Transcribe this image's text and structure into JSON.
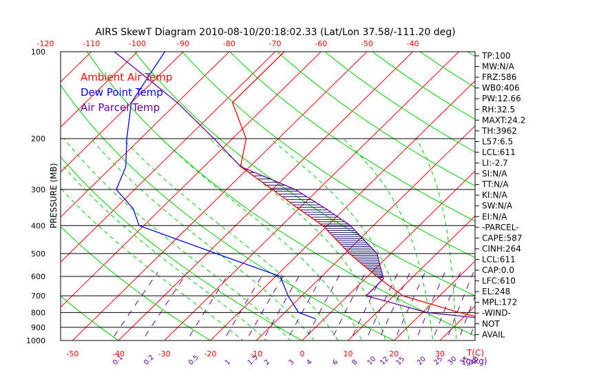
{
  "title": "AIRS SkewT Diagram 2010-08-10/20:18:02.33 (Lat/Lon 37.58/-111.20 deg)",
  "ylabel": "PRESSURE (MB)",
  "xunit_label": "T(C)",
  "mixing_unit_label": "(g/kg)",
  "legend": [
    {
      "label": "Ambient Air Temp",
      "color": "#ff0000"
    },
    {
      "label": "Dew Point Temp",
      "color": "#0000ff"
    },
    {
      "label": "Air Parcel Temp",
      "color": "#660099"
    }
  ],
  "colors": {
    "temp": "#ff0000",
    "dew": "#0000ff",
    "parcel": "#660099",
    "isotherm": "#ff0000",
    "dry_adiabat": "#00cc00",
    "moist_adiabat": "#00cc00",
    "mixing_ratio": "#660099",
    "hatch": "#000066",
    "axis_text": "#ff0000",
    "mixing_text": "#660099"
  },
  "stats": [
    "TP:100",
    "MW:N/A",
    "FRZ:586",
    "WB0:406",
    "PW:12.66",
    "RH:32.5",
    "MAXT:24.2",
    "TH:3962",
    "L57:6.5",
    "LCL:611",
    "LI:-2.7",
    "SI:N/A",
    "TT:N/A",
    "KI:N/A",
    "SW:N/A",
    "EI:N/A",
    "-PARCEL-",
    "CAPE:587",
    "CINH:264",
    "LCL:611",
    "CAP:0.0",
    "LFC:610",
    "EL:248",
    "MPL:172",
    "-WIND-",
    "NOT",
    "AVAIL"
  ],
  "chart_data": {
    "type": "line",
    "title": "AIRS SkewT Diagram 2010-08-10/20:18:02.33 (Lat/Lon 37.58/-111.20 deg)",
    "ylabel": "PRESSURE (MB)",
    "xlabel": "T(C)",
    "y_scale": "log",
    "ylim": [
      1000,
      100
    ],
    "pressure_ticks": [
      100,
      200,
      300,
      400,
      500,
      600,
      700,
      800,
      900,
      1000
    ],
    "bottom_temp_ticks": [
      -50,
      -40,
      -30,
      -20,
      -10,
      0,
      10,
      20,
      30
    ],
    "top_temp_ticks": [
      -120,
      -110,
      -100,
      -90,
      -80,
      -70,
      -60,
      -50,
      -40
    ],
    "mixing_ratio_ticks": [
      "0.1",
      "0.2",
      "0.5",
      "1",
      "1.5",
      "2",
      "3",
      "4",
      "6",
      "8",
      "10",
      "12",
      "15",
      "20",
      "25",
      "30",
      "35",
      "40"
    ],
    "series": [
      {
        "name": "Ambient Air Temp",
        "points": [
          {
            "p": 840,
            "t": 35
          },
          {
            "p": 800,
            "t": 28
          },
          {
            "p": 700,
            "t": 12
          },
          {
            "p": 600,
            "t": 2
          },
          {
            "p": 500,
            "t": -9
          },
          {
            "p": 400,
            "t": -21
          },
          {
            "p": 350,
            "t": -30
          },
          {
            "p": 300,
            "t": -40
          },
          {
            "p": 250,
            "t": -52
          },
          {
            "p": 200,
            "t": -57
          },
          {
            "p": 150,
            "t": -68
          },
          {
            "p": 100,
            "t": -68
          }
        ]
      },
      {
        "name": "Dew Point Temp",
        "points": [
          {
            "p": 840,
            "t": -2
          },
          {
            "p": 800,
            "t": -7
          },
          {
            "p": 700,
            "t": -13
          },
          {
            "p": 600,
            "t": -19
          },
          {
            "p": 500,
            "t": -38
          },
          {
            "p": 400,
            "t": -61
          },
          {
            "p": 350,
            "t": -66
          },
          {
            "p": 300,
            "t": -74
          },
          {
            "p": 250,
            "t": -77
          },
          {
            "p": 200,
            "t": -83
          },
          {
            "p": 150,
            "t": -90
          },
          {
            "p": 100,
            "t": -94
          }
        ]
      },
      {
        "name": "Air Parcel Temp",
        "points": [
          {
            "p": 840,
            "t": 35
          },
          {
            "p": 800,
            "t": 21
          },
          {
            "p": 700,
            "t": 4
          },
          {
            "p": 611,
            "t": 4
          },
          {
            "p": 500,
            "t": -3
          },
          {
            "p": 400,
            "t": -15
          },
          {
            "p": 350,
            "t": -24
          },
          {
            "p": 300,
            "t": -35
          },
          {
            "p": 250,
            "t": -52
          },
          {
            "p": 200,
            "t": -64
          },
          {
            "p": 150,
            "t": -80
          },
          {
            "p": 100,
            "t": -105
          }
        ]
      }
    ],
    "dry_adiabats_theta": [
      -60,
      -40,
      -20,
      0,
      20,
      40,
      60,
      80,
      100,
      120,
      140,
      160,
      180,
      200
    ],
    "moist_adiabats_start": [
      -10,
      -5,
      0,
      5,
      10,
      15,
      20,
      25,
      30,
      35
    ],
    "mixing_ratios_gkg": [
      0.1,
      0.2,
      0.5,
      1,
      1.5,
      2,
      3,
      4,
      6,
      8,
      10,
      12,
      15,
      20,
      25,
      30,
      35,
      40
    ],
    "isotherms_c": [
      -140,
      -130,
      -120,
      -110,
      -100,
      -90,
      -80,
      -70,
      -60,
      -50,
      -40,
      -30,
      -20,
      -10,
      0,
      10,
      20,
      30,
      40,
      50
    ]
  }
}
